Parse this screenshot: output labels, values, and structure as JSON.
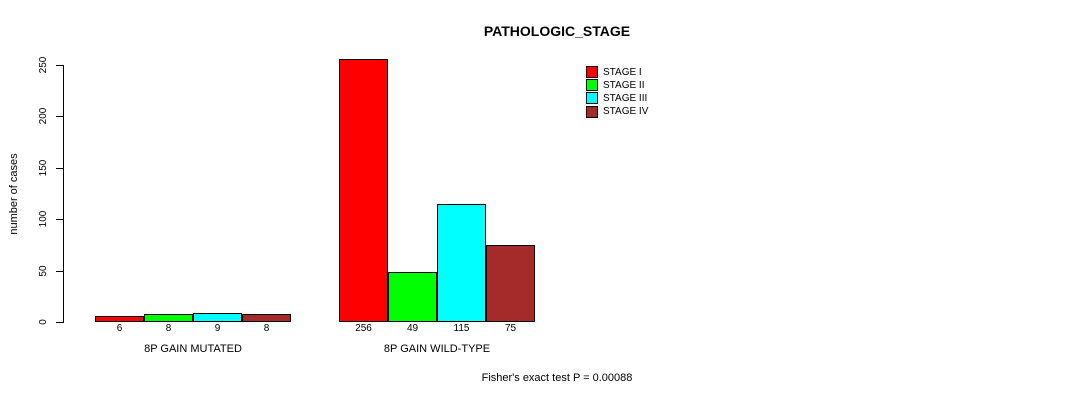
{
  "chart_data": {
    "type": "bar",
    "title": "PATHOLOGIC_STAGE",
    "xlabel": "",
    "ylabel": "number of cases",
    "categories": [
      "8P GAIN MUTATED",
      "8P GAIN WILD-TYPE"
    ],
    "series": [
      {
        "name": "STAGE I",
        "color": "#FF0000",
        "values": [
          6,
          256
        ]
      },
      {
        "name": "STAGE II",
        "color": "#00FF00",
        "values": [
          8,
          49
        ]
      },
      {
        "name": "STAGE III",
        "color": "#00FFFF",
        "values": [
          9,
          115
        ]
      },
      {
        "name": "STAGE IV",
        "color": "#A52A2A",
        "values": [
          8,
          75
        ]
      }
    ],
    "ylim": [
      0,
      250
    ],
    "yticks": [
      0,
      50,
      100,
      150,
      200,
      250
    ],
    "grid": false,
    "legend_position": "top-right",
    "bar_value_labels": true,
    "annotation": "Fisher's exact test P = 0.00088"
  }
}
